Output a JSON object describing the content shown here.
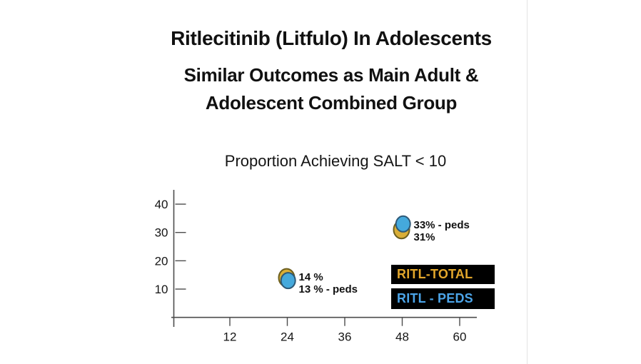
{
  "slide": {
    "title": "Ritlecitinib (Litfulo) In Adolescents",
    "subtitle_line1": "Similar Outcomes as Main Adult &",
    "subtitle_line2": "Adolescent Combined Group"
  },
  "chart_data": {
    "type": "scatter",
    "title": "Proportion Achieving SALT < 10",
    "xlabel": "",
    "ylabel": "",
    "x_ticks": [
      12,
      24,
      36,
      48,
      60
    ],
    "y_ticks": [
      10,
      20,
      30,
      40
    ],
    "xlim": [
      0,
      64
    ],
    "ylim": [
      0,
      46
    ],
    "grid": false,
    "legend_position": "inside-right",
    "series": [
      {
        "name": "RITL-TOTAL",
        "marker_color": "#D9AE37",
        "marker_stroke": "#6B5E1F",
        "points": [
          {
            "x": 24,
            "y": 14
          },
          {
            "x": 48,
            "y": 31
          }
        ]
      },
      {
        "name": "RITL - PEDS",
        "marker_color": "#45A9DC",
        "marker_stroke": "#2E5876",
        "points": [
          {
            "x": 24,
            "y": 13
          },
          {
            "x": 48,
            "y": 33
          }
        ]
      }
    ],
    "point_labels": [
      {
        "x": 24,
        "lines": [
          "14 %",
          "13 % - peds"
        ]
      },
      {
        "x": 48,
        "lines": [
          "33% - peds",
          "31%"
        ]
      }
    ],
    "legend": [
      {
        "label": "RITL-TOTAL",
        "text_color": "#E2A62B",
        "bg": "#000000"
      },
      {
        "label": "RITL - PEDS",
        "text_color": "#4CA4E8",
        "bg": "#000000"
      }
    ]
  },
  "colors": {
    "background": "#FFFFFF",
    "text": "#111111",
    "axis": "#4D4D4D",
    "frame_edge": "#E3E3E3"
  }
}
